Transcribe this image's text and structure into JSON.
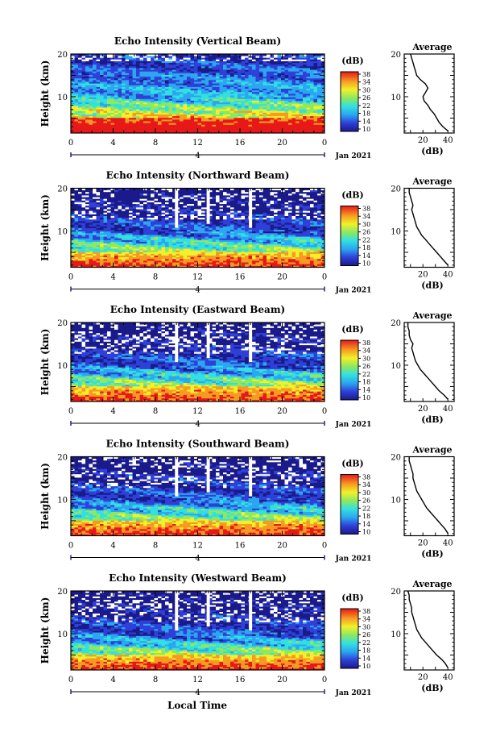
{
  "date_label": "Jan 2021",
  "time_axis_label": "Local Time",
  "day_marker": "4",
  "chart_data": [
    {
      "type": "heatmap",
      "title": "Echo Intensity (Vertical Beam)",
      "ylabel": "Height (km)",
      "x_ticks": [
        "0",
        "4",
        "8",
        "12",
        "16",
        "20",
        "0"
      ],
      "y_ticks": [
        "20",
        "10"
      ],
      "xlim": [
        0,
        24
      ],
      "ylim": [
        1.5,
        20
      ],
      "colorbar": {
        "label": "(dB)",
        "ticks": [
          "38",
          "34",
          "30",
          "26",
          "22",
          "18",
          "14",
          "10"
        ],
        "range": [
          10,
          38
        ]
      },
      "profile": {
        "title": "Average",
        "xlabel": "(dB)",
        "x_ticks": [
          "20",
          "40"
        ],
        "xlim": [
          5,
          45
        ],
        "y_ticks": [
          "20",
          "10"
        ],
        "heights": [
          2,
          3,
          4,
          5,
          6,
          7,
          8,
          9,
          10,
          11,
          12,
          13,
          14,
          15,
          16,
          17,
          18,
          19,
          20
        ],
        "values": [
          40,
          36,
          33,
          31,
          29,
          26,
          24,
          21,
          20,
          22,
          24,
          22,
          18,
          15,
          14,
          13,
          12,
          11,
          10
        ]
      }
    },
    {
      "type": "heatmap",
      "title": "Echo Intensity (Northward Beam)",
      "ylabel": "Height (km)",
      "x_ticks": [
        "0",
        "4",
        "8",
        "12",
        "16",
        "20",
        "0"
      ],
      "y_ticks": [
        "20",
        "10"
      ],
      "xlim": [
        0,
        24
      ],
      "ylim": [
        1.5,
        20
      ],
      "colorbar": {
        "label": "(dB)",
        "ticks": [
          "38",
          "34",
          "30",
          "26",
          "22",
          "18",
          "14",
          "10"
        ],
        "range": [
          10,
          38
        ]
      },
      "profile": {
        "title": "Average",
        "xlabel": "(dB)",
        "x_ticks": [
          "20",
          "40"
        ],
        "xlim": [
          5,
          45
        ],
        "y_ticks": [
          "20",
          "10"
        ],
        "heights": [
          2,
          3,
          4,
          5,
          6,
          7,
          8,
          9,
          10,
          11,
          12,
          13,
          14,
          15,
          16,
          17,
          18,
          19,
          20
        ],
        "values": [
          40,
          37,
          34,
          31,
          28,
          25,
          22,
          19,
          17,
          15,
          14,
          13,
          12,
          11,
          12,
          11,
          10,
          9,
          9
        ]
      }
    },
    {
      "type": "heatmap",
      "title": "Echo Intensity (Eastward Beam)",
      "ylabel": "Height (km)",
      "x_ticks": [
        "0",
        "4",
        "8",
        "12",
        "16",
        "20",
        "0"
      ],
      "y_ticks": [
        "20",
        "10"
      ],
      "xlim": [
        0,
        24
      ],
      "ylim": [
        1.5,
        20
      ],
      "colorbar": {
        "label": "(dB)",
        "ticks": [
          "38",
          "34",
          "30",
          "26",
          "22",
          "18",
          "14",
          "10"
        ],
        "range": [
          10,
          38
        ]
      },
      "profile": {
        "title": "Average",
        "xlabel": "(dB)",
        "x_ticks": [
          "20",
          "40"
        ],
        "xlim": [
          5,
          45
        ],
        "y_ticks": [
          "20",
          "10"
        ],
        "heights": [
          2,
          3,
          4,
          5,
          6,
          7,
          8,
          9,
          10,
          11,
          12,
          13,
          14,
          15,
          16,
          17,
          18,
          19,
          20
        ],
        "values": [
          40,
          37,
          33,
          30,
          27,
          24,
          21,
          18,
          16,
          14,
          13,
          12,
          11,
          12,
          10,
          9,
          9,
          8,
          8
        ]
      }
    },
    {
      "type": "heatmap",
      "title": "Echo Intensity (Southward Beam)",
      "ylabel": "Height (km)",
      "x_ticks": [
        "0",
        "4",
        "8",
        "12",
        "16",
        "20",
        "0"
      ],
      "y_ticks": [
        "20",
        "10"
      ],
      "xlim": [
        0,
        24
      ],
      "ylim": [
        1.5,
        20
      ],
      "colorbar": {
        "label": "(dB)",
        "ticks": [
          "38",
          "34",
          "30",
          "26",
          "22",
          "18",
          "14",
          "10"
        ],
        "range": [
          10,
          38
        ]
      },
      "profile": {
        "title": "Average",
        "xlabel": "(dB)",
        "x_ticks": [
          "20",
          "40"
        ],
        "xlim": [
          5,
          45
        ],
        "y_ticks": [
          "20",
          "10"
        ],
        "heights": [
          2,
          3,
          4,
          5,
          6,
          7,
          8,
          9,
          10,
          11,
          12,
          13,
          14,
          15,
          16,
          17,
          18,
          19,
          20
        ],
        "values": [
          40,
          38,
          35,
          32,
          29,
          26,
          23,
          21,
          19,
          17,
          15,
          14,
          13,
          12,
          12,
          11,
          10,
          9,
          9
        ]
      }
    },
    {
      "type": "heatmap",
      "title": "Echo Intensity (Westward Beam)",
      "ylabel": "Height (km)",
      "x_ticks": [
        "0",
        "4",
        "8",
        "12",
        "16",
        "20",
        "0"
      ],
      "y_ticks": [
        "20",
        "10"
      ],
      "xlim": [
        0,
        24
      ],
      "ylim": [
        1.5,
        20
      ],
      "colorbar": {
        "label": "(dB)",
        "ticks": [
          "38",
          "34",
          "30",
          "26",
          "22",
          "18",
          "14",
          "10"
        ],
        "range": [
          10,
          38
        ]
      },
      "profile": {
        "title": "Average",
        "xlabel": "(dB)",
        "x_ticks": [
          "20",
          "40"
        ],
        "xlim": [
          5,
          45
        ],
        "y_ticks": [
          "20",
          "10"
        ],
        "heights": [
          2,
          3,
          4,
          5,
          6,
          7,
          8,
          9,
          10,
          11,
          12,
          13,
          14,
          15,
          16,
          17,
          18,
          19,
          20
        ],
        "values": [
          40,
          38,
          35,
          31,
          28,
          25,
          22,
          19,
          17,
          15,
          14,
          13,
          12,
          11,
          11,
          10,
          9,
          9,
          8
        ]
      }
    }
  ]
}
